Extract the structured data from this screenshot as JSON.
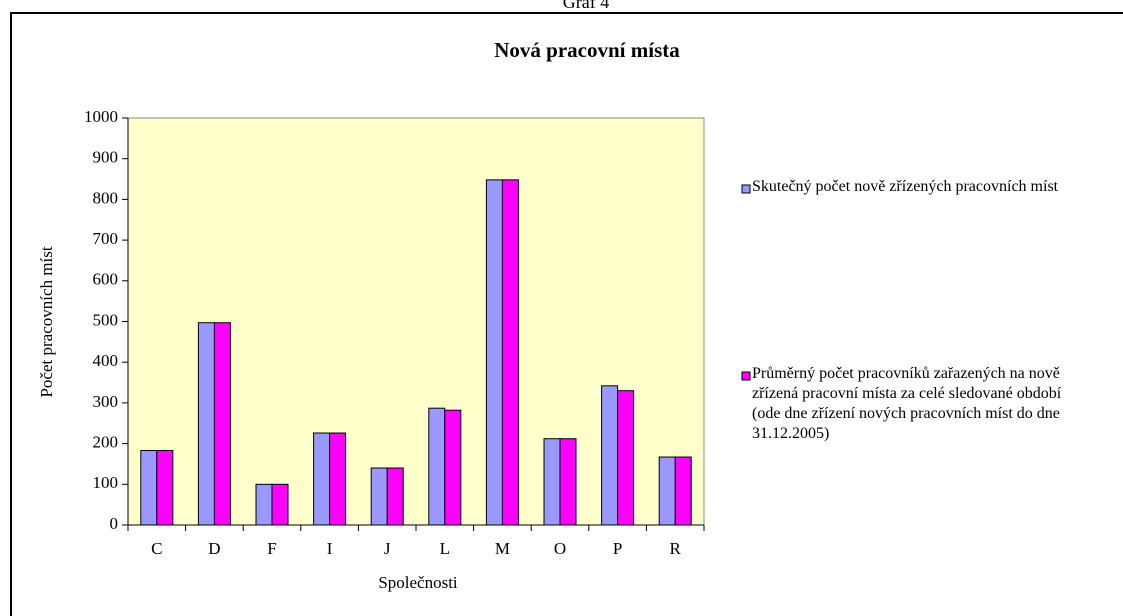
{
  "caption": "Graf 4",
  "chart_data": {
    "type": "bar",
    "title": "Nová pracovní místa",
    "x_label": "Společnosti",
    "y_label": "Počet pracovních míst",
    "categories": [
      "C",
      "D",
      "F",
      "I",
      "J",
      "L",
      "M",
      "O",
      "P",
      "R"
    ],
    "series": [
      {
        "name": "Skutečný počet nově zřízených pracovních míst",
        "color": "#9999ff",
        "values": [
          183,
          497,
          100,
          226,
          140,
          287,
          848,
          212,
          342,
          167
        ]
      },
      {
        "name": "Průměrný počet pracovníků zařazených na nově zřízená pracovní místa za celé sledované období (ode dne zřízení nových pracovních míst do dne 31.12.2005)",
        "color": "#ff00ff",
        "values": [
          183,
          497,
          100,
          226,
          140,
          282,
          848,
          212,
          330,
          167
        ]
      }
    ],
    "ylim": [
      0,
      1000
    ],
    "yticks": [
      0,
      100,
      200,
      300,
      400,
      500,
      600,
      700,
      800,
      900,
      1000
    ],
    "grid": false,
    "plot_background": "#ffffcc",
    "legend": "right"
  }
}
